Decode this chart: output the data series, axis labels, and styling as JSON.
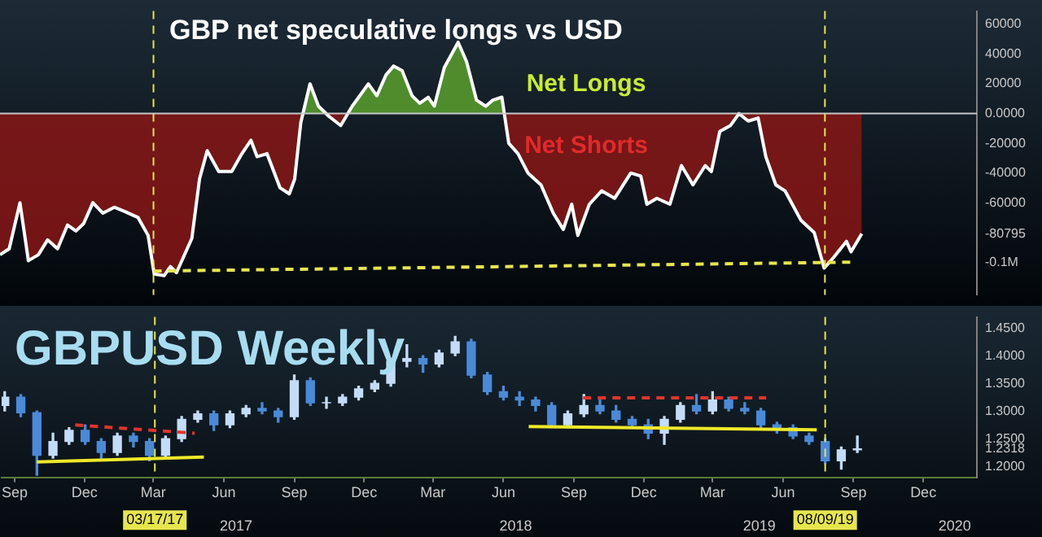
{
  "chart_data": [
    {
      "type": "area",
      "title": "GBP net speculative longs vs USD",
      "marker": "none",
      "tick_labels": "y",
      "xlim": [
        "2016-08-29",
        "2020-02-23"
      ],
      "ylim": [
        -122000,
        69000
      ],
      "yticks": [
        60000,
        40000,
        20000,
        {
          "value": 0,
          "label": "0.0000"
        },
        -20000,
        -40000,
        -60000,
        {
          "value": -80795,
          "label": "-80795"
        },
        {
          "value": -100000,
          "label": "-0.1M"
        }
      ],
      "series": [
        {
          "color": "#ffffff",
          "x": [
            "2016-08-29",
            "2016-09-10",
            "2016-09-24",
            "2016-10-05",
            "2016-10-18",
            "2016-10-30",
            "2016-11-12",
            "2016-11-25",
            "2016-12-06",
            "2016-12-16",
            "2016-12-28",
            "2017-01-10",
            "2017-01-25",
            "2017-02-08",
            "2017-02-25",
            "2017-03-10",
            "2017-03-18",
            "2017-03-31",
            "2017-04-08",
            "2017-04-16",
            "2017-05-06",
            "2017-05-16",
            "2017-05-26",
            "2017-06-10",
            "2017-06-27",
            "2017-07-09",
            "2017-07-22",
            "2017-07-30",
            "2017-08-12",
            "2017-08-29",
            "2017-09-10",
            "2017-09-17",
            "2017-09-25",
            "2017-10-07",
            "2017-10-18",
            "2017-11-01",
            "2017-11-16",
            "2017-12-01",
            "2017-12-22",
            "2018-01-02",
            "2018-01-14",
            "2018-01-24",
            "2018-02-04",
            "2018-02-17",
            "2018-02-27",
            "2018-03-10",
            "2018-03-18",
            "2018-03-31",
            "2018-04-18",
            "2018-04-29",
            "2018-05-12",
            "2018-05-24",
            "2018-06-02",
            "2018-06-14",
            "2018-06-23",
            "2018-07-05",
            "2018-07-18",
            "2018-08-04",
            "2018-08-20",
            "2018-09-02",
            "2018-09-13",
            "2018-09-21",
            "2018-10-06",
            "2018-10-22",
            "2018-11-08",
            "2018-11-29",
            "2018-12-12",
            "2018-12-20",
            "2019-01-02",
            "2019-01-19",
            "2019-02-03",
            "2019-02-18",
            "2019-03-06",
            "2019-03-14",
            "2019-03-25",
            "2019-04-08",
            "2019-04-19",
            "2019-05-01",
            "2019-05-14",
            "2019-05-24",
            "2019-06-06",
            "2019-06-18",
            "2019-07-09",
            "2019-07-26",
            "2019-08-08",
            "2019-08-20",
            "2019-09-06",
            "2019-09-12",
            "2019-09-26"
          ],
          "values": [
            -95000,
            -91000,
            -60000,
            -99000,
            -95000,
            -85000,
            -91000,
            -75000,
            -79000,
            -74000,
            -60000,
            -67000,
            -63000,
            -66000,
            -70000,
            -82000,
            -108000,
            -109000,
            -103000,
            -107000,
            -84000,
            -44000,
            -25000,
            -39000,
            -39000,
            -28000,
            -18000,
            -29000,
            -27000,
            -50000,
            -54000,
            -44000,
            -6000,
            20000,
            5000,
            -2000,
            -8000,
            5000,
            20000,
            12000,
            26000,
            32000,
            29000,
            12000,
            7000,
            11000,
            5000,
            31000,
            48000,
            35000,
            9000,
            5000,
            9000,
            11000,
            -20000,
            -27000,
            -40000,
            -48000,
            -67000,
            -78000,
            -61000,
            -82000,
            -61000,
            -52000,
            -57000,
            -40000,
            -42000,
            -61000,
            -57000,
            -61000,
            -35000,
            -48000,
            -35000,
            -39000,
            -12000,
            -8000,
            0,
            -5000,
            -3000,
            -29000,
            -48000,
            -52000,
            -72000,
            -80000,
            -104000,
            -97000,
            -86000,
            -93000,
            -80795
          ]
        },
        {
          "type": "line",
          "color": "#e6e64c",
          "line_style": "dashed",
          "x": [
            "2017-03-17",
            "2019-09-12"
          ],
          "values": [
            -106000,
            -100000
          ]
        }
      ],
      "ref_lines": [
        {
          "axis": "y",
          "value": 0,
          "color": "#c8c8c8",
          "line_style": "solid"
        },
        {
          "axis": "x",
          "value": "2017-03-17",
          "color": "#e6e64c",
          "line_style": "dashed"
        },
        {
          "axis": "x",
          "value": "2019-08-09",
          "color": "#e6e64c",
          "line_style": "dashed"
        }
      ],
      "annotations": [
        "Net Longs",
        "Net Shorts"
      ]
    },
    {
      "type": "candlestick",
      "title": "GBPUSD Weekly",
      "marker": "none",
      "xlim": [
        "2016-08-29",
        "2020-02-23"
      ],
      "ylim": [
        1.18,
        1.47
      ],
      "xticks": [
        {
          "value": "2016-09-15",
          "label": "Sep"
        },
        {
          "value": "2016-12-15",
          "label": "Dec"
        },
        {
          "value": "2017-03-15",
          "label": "Mar"
        },
        {
          "value": "2017-06-15",
          "label": "Jun"
        },
        {
          "value": "2017-09-15",
          "label": "Sep"
        },
        {
          "value": "2017-12-15",
          "label": "Dec"
        },
        {
          "value": "2018-03-15",
          "label": "Mar"
        },
        {
          "value": "2018-06-15",
          "label": "Jun"
        },
        {
          "value": "2018-09-15",
          "label": "Sep"
        },
        {
          "value": "2018-12-15",
          "label": "Dec"
        },
        {
          "value": "2019-03-15",
          "label": "Mar"
        },
        {
          "value": "2019-06-15",
          "label": "Jun"
        },
        {
          "value": "2019-09-15",
          "label": "Sep"
        },
        {
          "value": "2019-12-15",
          "label": "Dec"
        }
      ],
      "x2lim": [
        "2016-08-29",
        "2020-02-23"
      ],
      "x2ticks": [
        {
          "value": "2017-07-01",
          "label": "2017"
        },
        {
          "value": "2018-07-01",
          "label": "2018"
        },
        {
          "value": "2019-05-15",
          "label": "2019"
        },
        {
          "value": "2020-01-25",
          "label": "2020"
        }
      ],
      "yticks": [
        {
          "value": 1.45,
          "label": "1.4500"
        },
        {
          "value": 1.4,
          "label": "1.4000"
        },
        {
          "value": 1.35,
          "label": "1.3500"
        },
        {
          "value": 1.3,
          "label": "1.3000"
        },
        {
          "value": 1.25,
          "label": "1.2500"
        },
        {
          "value": 1.2318,
          "label": "1.2318"
        },
        {
          "value": 1.2,
          "label": "1.2000"
        }
      ],
      "x": [
        "2016-09-02",
        "2016-09-23",
        "2016-10-14",
        "2016-11-04",
        "2016-11-25",
        "2016-12-16",
        "2017-01-06",
        "2017-01-27",
        "2017-02-17",
        "2017-03-10",
        "2017-03-31",
        "2017-04-21",
        "2017-05-12",
        "2017-06-02",
        "2017-06-23",
        "2017-07-14",
        "2017-08-04",
        "2017-08-25",
        "2017-09-15",
        "2017-10-06",
        "2017-10-27",
        "2017-11-17",
        "2017-12-08",
        "2017-12-29",
        "2018-01-19",
        "2018-02-09",
        "2018-03-02",
        "2018-03-23",
        "2018-04-13",
        "2018-05-04",
        "2018-05-25",
        "2018-06-15",
        "2018-07-06",
        "2018-07-27",
        "2018-08-17",
        "2018-09-07",
        "2018-09-28",
        "2018-10-19",
        "2018-11-09",
        "2018-11-30",
        "2018-12-21",
        "2019-01-11",
        "2019-02-01",
        "2019-02-22",
        "2019-03-15",
        "2019-04-05",
        "2019-04-26",
        "2019-05-17",
        "2019-06-07",
        "2019-06-28",
        "2019-07-19",
        "2019-08-09",
        "2019-08-30",
        "2019-09-20"
      ],
      "ohlc": [
        [
          1.31,
          1.335,
          1.3,
          1.325
        ],
        [
          1.325,
          1.33,
          1.29,
          1.297
        ],
        [
          1.297,
          1.3,
          1.184,
          1.22
        ],
        [
          1.22,
          1.26,
          1.215,
          1.245
        ],
        [
          1.245,
          1.27,
          1.24,
          1.265
        ],
        [
          1.265,
          1.275,
          1.24,
          1.245
        ],
        [
          1.245,
          1.25,
          1.215,
          1.225
        ],
        [
          1.225,
          1.26,
          1.22,
          1.255
        ],
        [
          1.255,
          1.26,
          1.235,
          1.245
        ],
        [
          1.245,
          1.25,
          1.21,
          1.22
        ],
        [
          1.22,
          1.255,
          1.215,
          1.25
        ],
        [
          1.25,
          1.29,
          1.245,
          1.285
        ],
        [
          1.285,
          1.3,
          1.28,
          1.295
        ],
        [
          1.295,
          1.3,
          1.265,
          1.275
        ],
        [
          1.275,
          1.3,
          1.27,
          1.295
        ],
        [
          1.295,
          1.31,
          1.29,
          1.305
        ],
        [
          1.305,
          1.315,
          1.295,
          1.3
        ],
        [
          1.3,
          1.305,
          1.28,
          1.29
        ],
        [
          1.29,
          1.365,
          1.285,
          1.355
        ],
        [
          1.355,
          1.36,
          1.31,
          1.315
        ],
        [
          1.315,
          1.325,
          1.305,
          1.315
        ],
        [
          1.315,
          1.33,
          1.31,
          1.325
        ],
        [
          1.325,
          1.345,
          1.32,
          1.34
        ],
        [
          1.34,
          1.355,
          1.335,
          1.35
        ],
        [
          1.35,
          1.395,
          1.345,
          1.39
        ],
        [
          1.39,
          1.42,
          1.38,
          1.395
        ],
        [
          1.395,
          1.4,
          1.37,
          1.385
        ],
        [
          1.385,
          1.41,
          1.38,
          1.405
        ],
        [
          1.405,
          1.435,
          1.4,
          1.425
        ],
        [
          1.425,
          1.43,
          1.36,
          1.365
        ],
        [
          1.365,
          1.37,
          1.33,
          1.335
        ],
        [
          1.335,
          1.345,
          1.32,
          1.325
        ],
        [
          1.325,
          1.335,
          1.31,
          1.32
        ],
        [
          1.32,
          1.325,
          1.3,
          1.31
        ],
        [
          1.31,
          1.315,
          1.27,
          1.275
        ],
        [
          1.275,
          1.3,
          1.27,
          1.295
        ],
        [
          1.295,
          1.33,
          1.29,
          1.31
        ],
        [
          1.31,
          1.32,
          1.295,
          1.3
        ],
        [
          1.3,
          1.31,
          1.28,
          1.285
        ],
        [
          1.285,
          1.29,
          1.27,
          1.275
        ],
        [
          1.275,
          1.285,
          1.25,
          1.26
        ],
        [
          1.26,
          1.29,
          1.24,
          1.285
        ],
        [
          1.285,
          1.315,
          1.28,
          1.31
        ],
        [
          1.31,
          1.33,
          1.295,
          1.3
        ],
        [
          1.3,
          1.335,
          1.295,
          1.32
        ],
        [
          1.32,
          1.325,
          1.3,
          1.305
        ],
        [
          1.305,
          1.315,
          1.295,
          1.3
        ],
        [
          1.3,
          1.305,
          1.27,
          1.275
        ],
        [
          1.275,
          1.28,
          1.26,
          1.27
        ],
        [
          1.27,
          1.275,
          1.25,
          1.255
        ],
        [
          1.255,
          1.26,
          1.24,
          1.245
        ],
        [
          1.245,
          1.25,
          1.205,
          1.21
        ],
        [
          1.21,
          1.235,
          1.195,
          1.23
        ],
        [
          1.23,
          1.255,
          1.225,
          1.2318
        ]
      ],
      "series": [
        {
          "type": "line",
          "color": "#e0342c",
          "line_style": "dashed",
          "x": [
            "2016-12-03",
            "2017-05-08"
          ],
          "values": [
            1.275,
            1.26
          ]
        },
        {
          "type": "line",
          "color": "#f0e82a",
          "line_style": "solid",
          "x": [
            "2016-10-14",
            "2017-05-20"
          ],
          "values": [
            1.208,
            1.217
          ]
        },
        {
          "type": "line",
          "color": "#e0342c",
          "line_style": "dashed",
          "x": [
            "2018-09-27",
            "2019-05-24"
          ],
          "values": [
            1.324,
            1.324
          ]
        },
        {
          "type": "line",
          "color": "#f0e82a",
          "line_style": "solid",
          "x": [
            "2018-07-18",
            "2019-07-29"
          ],
          "values": [
            1.272,
            1.266
          ]
        }
      ],
      "ref_lines": [
        {
          "axis": "x",
          "value": "2017-03-17",
          "label": "03/17/17",
          "color": "#e6e64c",
          "line_style": "dashed"
        },
        {
          "axis": "x",
          "value": "2019-08-09",
          "label": "08/09/19",
          "color": "#e6e64c",
          "line_style": "dashed"
        }
      ]
    }
  ]
}
